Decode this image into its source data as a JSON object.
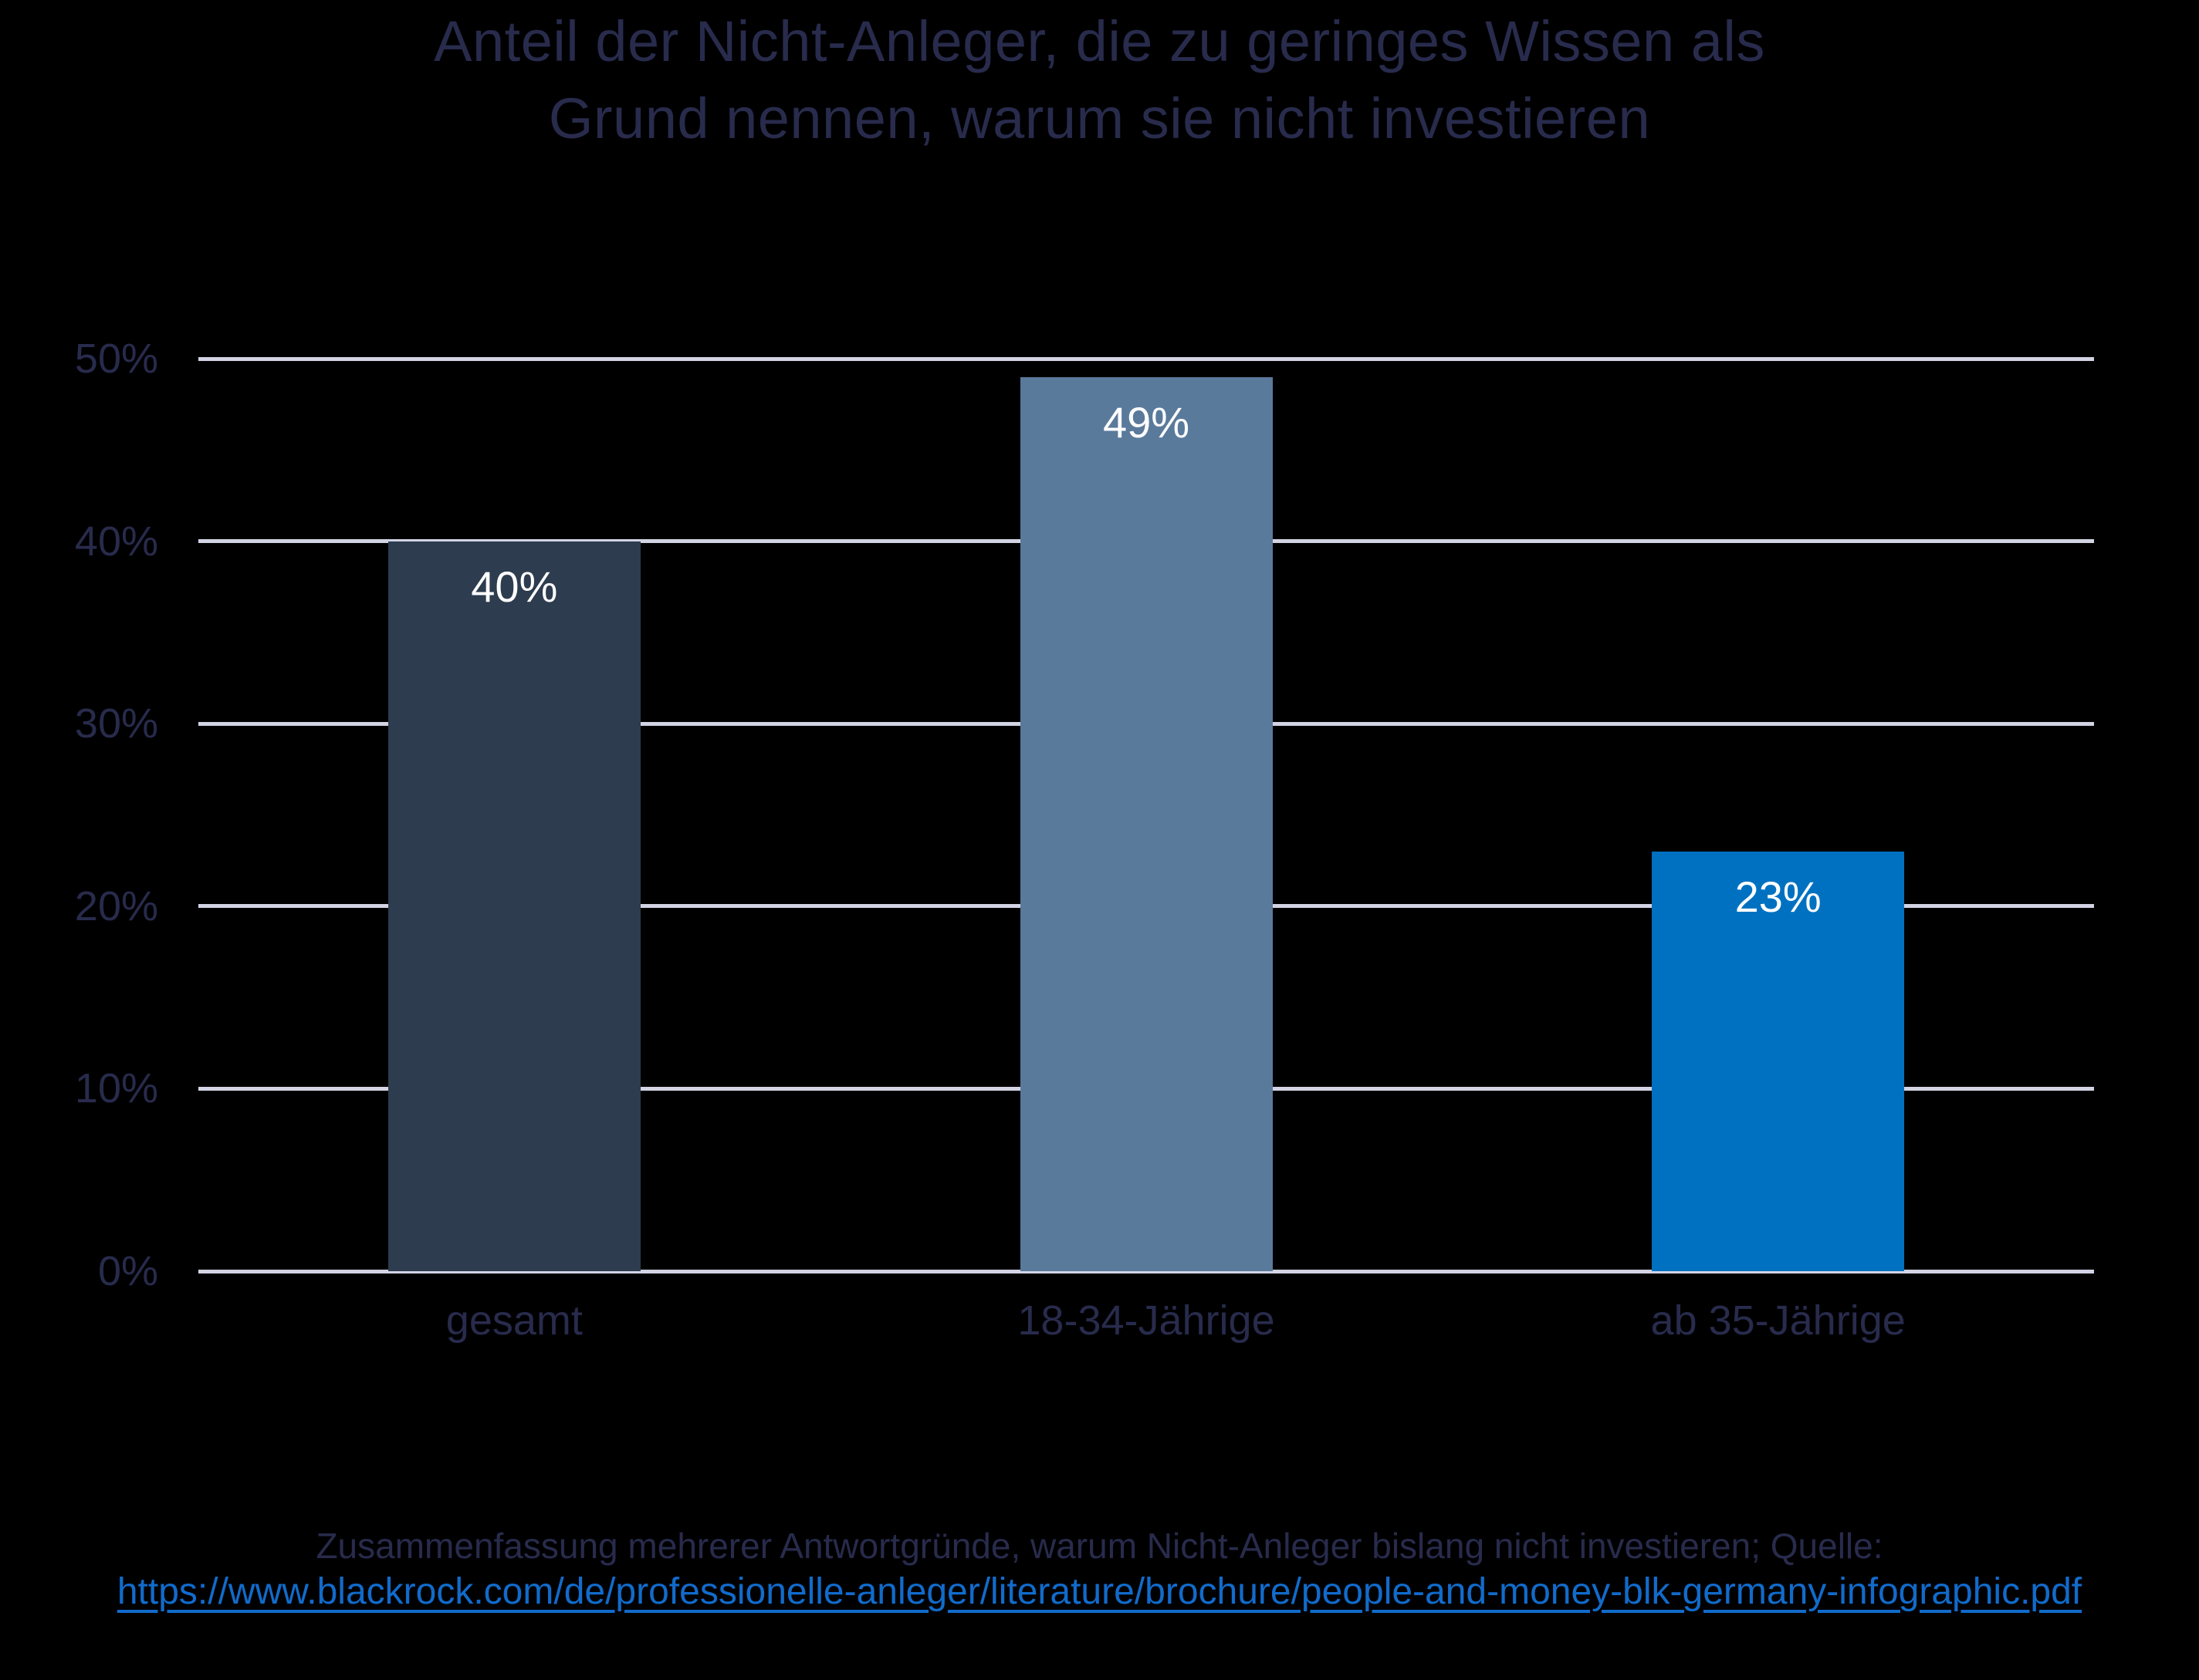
{
  "chart_data": {
    "type": "bar",
    "title": "Anteil der Nicht-Anleger, die zu geringes Wissen als Grund nennen, warum sie nicht investieren",
    "title_lines": [
      "Anteil der Nicht-Anleger, die zu geringes Wissen als",
      "Grund nennen, warum sie nicht investieren"
    ],
    "categories": [
      "gesamt",
      "18-34-Jährige",
      "ab 35-Jährige"
    ],
    "values": [
      40,
      49,
      23
    ],
    "value_labels": [
      "40%",
      "49%",
      "23%"
    ],
    "bar_colors": [
      "#2d3c4e",
      "#5a7a9c",
      "#0071c1"
    ],
    "xlabel": "",
    "ylabel": "",
    "ylim": [
      0,
      50
    ],
    "yticks": [
      {
        "value": 50,
        "label": "50%"
      },
      {
        "value": 40,
        "label": "40%"
      },
      {
        "value": 30,
        "label": "30%"
      },
      {
        "value": 20,
        "label": "20%"
      },
      {
        "value": 10,
        "label": "10%"
      },
      {
        "value": 0,
        "label": "0%"
      }
    ],
    "grid": true,
    "legend": false
  },
  "footer": {
    "note": "Zusammenfassung mehrerer Antwortgründe, warum Nicht-Anleger bislang nicht investieren; Quelle:",
    "link_text": "https://www.blackrock.com/de/professionelle-anleger/literature/brochure/people-and-money-blk-germany-infographic.pdf"
  },
  "colors": {
    "background": "#000000",
    "text": "#282b4c",
    "grid": "#d2d4e4",
    "bar_label": "#ffffff",
    "link": "#116bcb"
  }
}
